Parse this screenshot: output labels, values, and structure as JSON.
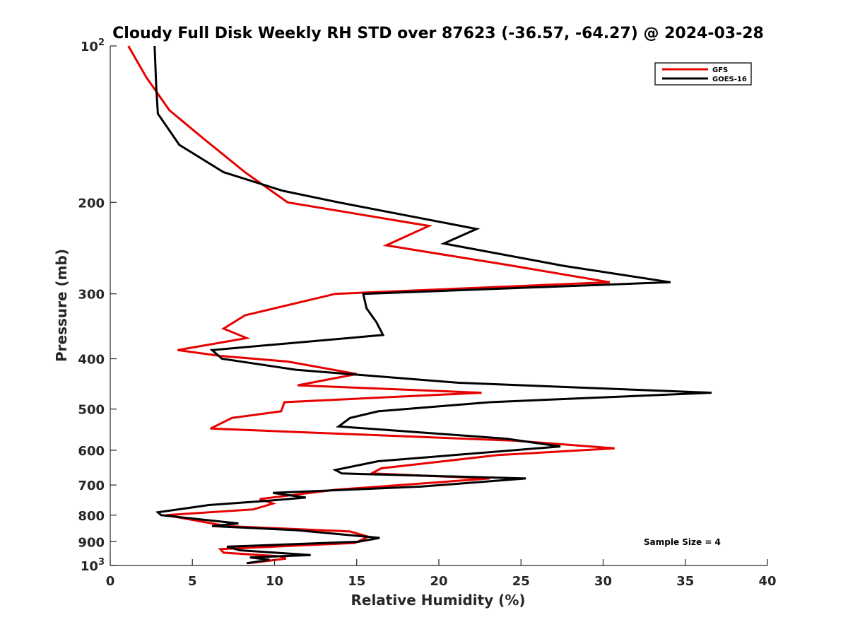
{
  "chart_data": {
    "type": "line",
    "title": "Cloudy Full Disk Weekly RH STD over 87623 (-36.57, -64.27) @ 2024-03-28",
    "xlabel": "Relative Humidity (%)",
    "ylabel": "Pressure (mb)",
    "xlim": [
      0,
      40
    ],
    "ylim": [
      100,
      1000
    ],
    "yscale": "log",
    "y_reversed": true,
    "grid": false,
    "legend_position": "top-right",
    "xticks": [
      0,
      5,
      10,
      15,
      20,
      25,
      30,
      35,
      40
    ],
    "xtick_labels": [
      "0",
      "5",
      "10",
      "15",
      "20",
      "25",
      "30",
      "35",
      "40"
    ],
    "yticks": [
      100,
      200,
      300,
      400,
      500,
      600,
      700,
      800,
      900,
      1000
    ],
    "ytick_labels": [
      {
        "base": "10",
        "exp": "2"
      },
      {
        "base": "200",
        "exp": ""
      },
      {
        "base": "300",
        "exp": ""
      },
      {
        "base": "400",
        "exp": ""
      },
      {
        "base": "500",
        "exp": ""
      },
      {
        "base": "600",
        "exp": ""
      },
      {
        "base": "700",
        "exp": ""
      },
      {
        "base": "800",
        "exp": ""
      },
      {
        "base": "900",
        "exp": ""
      },
      {
        "base": "10",
        "exp": "3"
      }
    ],
    "annotation": "Sample Size = 4",
    "series": [
      {
        "name": "GFS",
        "color": "#e60000",
        "points": [
          [
            1.1,
            100
          ],
          [
            2.2,
            115
          ],
          [
            3.6,
            133
          ],
          [
            5.7,
            151
          ],
          [
            8.2,
            175
          ],
          [
            10.8,
            200
          ],
          [
            19.4,
            222
          ],
          [
            16.8,
            242
          ],
          [
            24.2,
            264
          ],
          [
            30.4,
            285
          ],
          [
            13.7,
            300
          ],
          [
            8.2,
            330
          ],
          [
            6.9,
            350
          ],
          [
            8.3,
            365
          ],
          [
            4.1,
            385
          ],
          [
            6.7,
            395
          ],
          [
            10.8,
            405
          ],
          [
            15.0,
            428
          ],
          [
            11.4,
            450
          ],
          [
            22.6,
            465
          ],
          [
            10.6,
            485
          ],
          [
            10.4,
            505
          ],
          [
            7.4,
            520
          ],
          [
            6.1,
            545
          ],
          [
            24.6,
            575
          ],
          [
            30.7,
            595
          ],
          [
            23.6,
            613
          ],
          [
            16.5,
            650
          ],
          [
            15.9,
            665
          ],
          [
            23.1,
            680
          ],
          [
            13.7,
            715
          ],
          [
            9.1,
            745
          ],
          [
            9.9,
            760
          ],
          [
            8.7,
            780
          ],
          [
            3.4,
            800
          ],
          [
            7.1,
            840
          ],
          [
            14.6,
            860
          ],
          [
            15.7,
            880
          ],
          [
            14.9,
            905
          ],
          [
            6.7,
            930
          ],
          [
            6.9,
            945
          ],
          [
            10.3,
            960
          ],
          [
            10.7,
            970
          ],
          [
            8.4,
            990
          ]
        ]
      },
      {
        "name": "GOES-16",
        "color": "#000000",
        "points": [
          [
            2.7,
            100
          ],
          [
            2.8,
            120
          ],
          [
            2.9,
            135
          ],
          [
            4.2,
            155
          ],
          [
            6.9,
            175
          ],
          [
            10.5,
            190
          ],
          [
            13.9,
            200
          ],
          [
            22.3,
            225
          ],
          [
            20.3,
            240
          ],
          [
            27.6,
            265
          ],
          [
            34.1,
            285
          ],
          [
            15.4,
            300
          ],
          [
            15.6,
            320
          ],
          [
            16.2,
            340
          ],
          [
            16.6,
            360
          ],
          [
            6.2,
            385
          ],
          [
            6.8,
            400
          ],
          [
            11.3,
            420
          ],
          [
            21.2,
            445
          ],
          [
            36.6,
            465
          ],
          [
            23.1,
            485
          ],
          [
            16.3,
            505
          ],
          [
            14.6,
            520
          ],
          [
            13.9,
            540
          ],
          [
            24.1,
            570
          ],
          [
            27.4,
            590
          ],
          [
            24.6,
            600
          ],
          [
            16.3,
            630
          ],
          [
            13.7,
            655
          ],
          [
            14.1,
            665
          ],
          [
            25.3,
            680
          ],
          [
            18.9,
            705
          ],
          [
            9.9,
            725
          ],
          [
            11.9,
            740
          ],
          [
            9.7,
            750
          ],
          [
            6.0,
            765
          ],
          [
            2.9,
            790
          ],
          [
            3.1,
            800
          ],
          [
            7.8,
            830
          ],
          [
            6.2,
            840
          ],
          [
            11.3,
            855
          ],
          [
            16.4,
            885
          ],
          [
            15.1,
            900
          ],
          [
            7.1,
            920
          ],
          [
            7.9,
            935
          ],
          [
            12.2,
            955
          ],
          [
            8.5,
            965
          ],
          [
            9.7,
            975
          ],
          [
            8.3,
            990
          ]
        ]
      }
    ]
  },
  "colors": {
    "axis": "#262626",
    "background": "#ffffff",
    "gfs": "#e60000",
    "goes16": "#000000"
  }
}
